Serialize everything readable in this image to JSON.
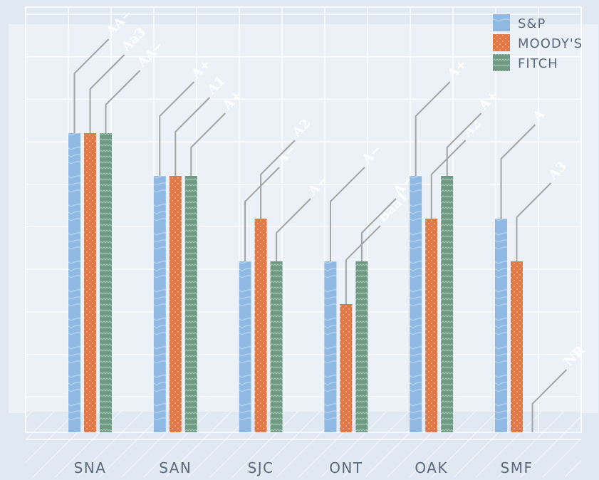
{
  "chart_data": {
    "type": "bar",
    "title": "",
    "xlabel": "",
    "ylabel": "",
    "categories": [
      "SNA",
      "SAN",
      "SJC",
      "ONT",
      "OAK",
      "SMF"
    ],
    "scale_note": "bar heights encode rating level; tick marks unlabeled",
    "ylim": [
      0,
      7
    ],
    "grid": true,
    "legend_position": "top-right",
    "series": [
      {
        "name": "S&P",
        "color": "#8fb8e3",
        "pattern": "arcs",
        "values": [
          7,
          6,
          4,
          4,
          6,
          5
        ],
        "labels": [
          "AA−",
          "A+",
          "A−",
          "A−",
          "A+",
          "A"
        ]
      },
      {
        "name": "MOODY'S",
        "color": "#e07848",
        "pattern": "dots",
        "values": [
          7,
          6,
          5,
          3,
          5,
          4
        ],
        "labels": [
          "Aa3",
          "A1",
          "A2",
          "Baa1",
          "A2",
          "A3"
        ]
      },
      {
        "name": "FITCH",
        "color": "#6f9a84",
        "pattern": "zigzag",
        "values": [
          7,
          6,
          4,
          4,
          6,
          0
        ],
        "labels": [
          "AA−",
          "A+",
          "A−",
          "A−",
          "A+",
          "NR"
        ]
      }
    ]
  }
}
